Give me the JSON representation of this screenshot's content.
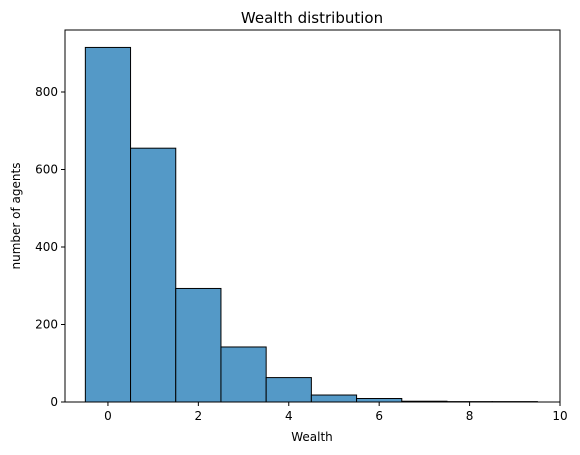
{
  "chart_data": {
    "type": "bar",
    "title": "Wealth distribution",
    "xlabel": "Wealth",
    "ylabel": "number of agents",
    "bin_edges": [
      -0.5,
      0.5,
      1.5,
      2.5,
      3.5,
      4.5,
      5.5,
      6.5,
      7.5,
      8.5,
      9.5
    ],
    "values": [
      915,
      655,
      293,
      142,
      63,
      18,
      9,
      2,
      1,
      1
    ],
    "xlim": [
      -0.95,
      10
    ],
    "ylim": [
      0,
      960
    ],
    "xticks": [
      0,
      2,
      4,
      6,
      8,
      10
    ],
    "xtick_labels": [
      "0",
      "2",
      "4",
      "6",
      "8",
      "10"
    ],
    "yticks": [
      0,
      200,
      400,
      600,
      800
    ],
    "ytick_labels": [
      "0",
      "200",
      "400",
      "600",
      "800"
    ],
    "bar_color": "#5499c7",
    "edge_color": "#000000",
    "grid": false,
    "legend": "none"
  }
}
